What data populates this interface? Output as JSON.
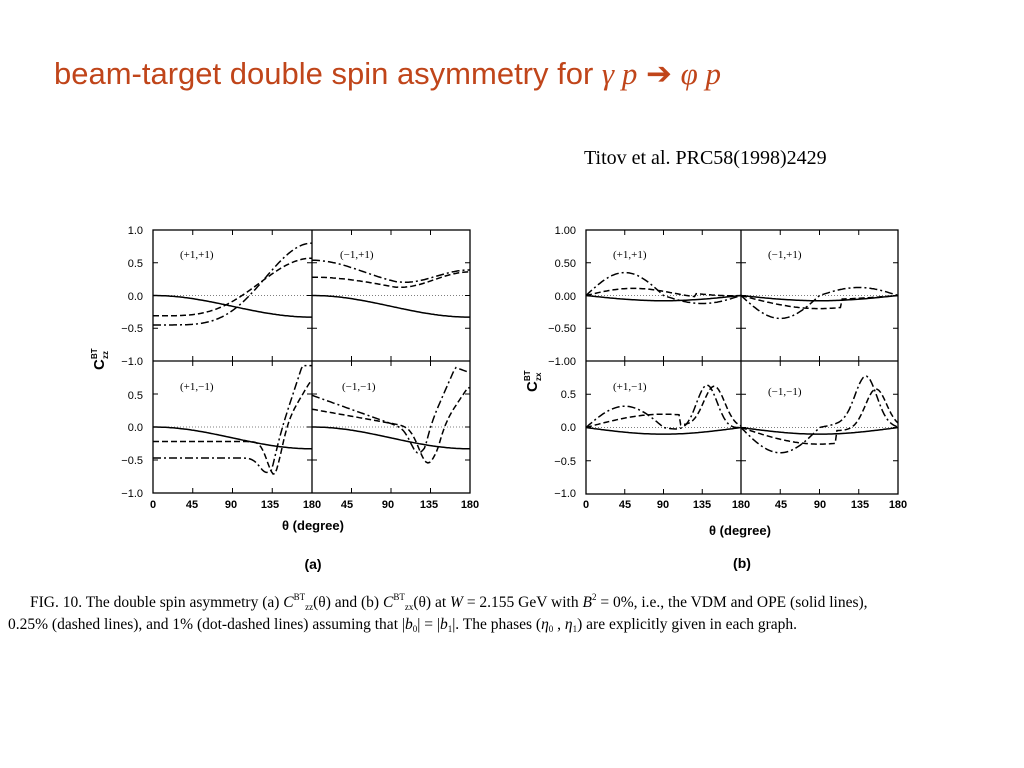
{
  "slide": {
    "title_text": "beam-target double spin asymmetry for ",
    "title_initial": "γ p",
    "title_arrow": "➔",
    "title_final": "φ p",
    "citation": "Titov et al.  PRC58(1998)2429"
  },
  "figure": {
    "x_ticks": [
      "0",
      "45",
      "90",
      "135",
      "180"
    ],
    "x_label": "θ  (degree)",
    "panel_a": {
      "label": "(a)",
      "y_label": "C",
      "y_label_sup": "BT",
      "y_label_sub": "zz",
      "y_ticks": [
        "1.0",
        "0.5",
        "0.0",
        "−0.5",
        "−1.0"
      ],
      "inset_labels": [
        "(+1,+1)",
        "(−1,+1)",
        "(+1,−1)",
        "(−1,−1)"
      ]
    },
    "panel_b": {
      "label": "(b)",
      "y_label": "C",
      "y_label_sup": "BT",
      "y_label_sub": "zx",
      "y_ticks": [
        "1.00",
        "0.50",
        "0.00",
        "−0.50",
        "−1.00"
      ],
      "y_ticks_lower": [
        "1.0",
        "0.5",
        "0.0",
        "−0.5",
        "−1.0"
      ],
      "inset_labels": [
        "(+1,+1)",
        "(−1,+1)",
        "(+1,−1)",
        "(−1,−1)"
      ]
    }
  },
  "caption": {
    "fig": "FIG. 10.",
    "p1": " The double spin asymmetry (a) ",
    "czz": "C",
    "czz_sup": "BT",
    "czz_sub": "zz",
    "theta1": "(θ)",
    "p2": " and (b) ",
    "czx": "C",
    "czx_sup": "BT",
    "czx_sub": "zx",
    "theta2": "(θ)",
    "p3": " at ",
    "w": "W",
    "p4": " = 2.155 GeV with ",
    "b": "B",
    "b_sup": "2",
    "p5": " = 0%, i.e., the VDM and OPE (solid lines),",
    "line2a": "0.25% (dashed lines), and 1% (dot-dashed lines) assuming that |",
    "b0": "b",
    "b0_sub": "0",
    "line2b": "| = |",
    "b1": "b",
    "b1_sub": "1",
    "line2c": "|.  The phases (",
    "eta0": "η",
    "eta0_sub": "0",
    "comma": " , ",
    "eta1": "η",
    "eta1_sub": "1",
    "line2d": ") are explicitly given in each graph."
  }
}
